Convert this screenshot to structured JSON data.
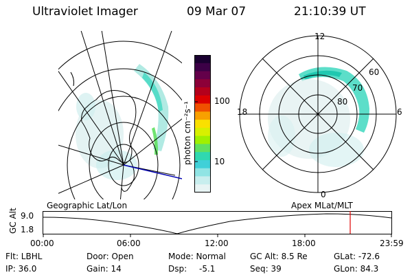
{
  "header": {
    "instrument": "Ultraviolet Imager",
    "date": "09 Mar 07",
    "time": "21:10:39 UT"
  },
  "colorbar": {
    "unit_label": "photon cm⁻²s⁻¹",
    "ticks": [
      "100",
      "10"
    ],
    "colors": [
      "#1a0030",
      "#3c0046",
      "#64004a",
      "#8c0038",
      "#b4001c",
      "#dc0000",
      "#f05000",
      "#f8a000",
      "#fae000",
      "#d8f000",
      "#a0f000",
      "#60e060",
      "#30d8b0",
      "#40d0d8",
      "#90e4e4",
      "#c8eeee",
      "#e8f4f4"
    ]
  },
  "left_map": {
    "name": "Geographic Lat/Lon"
  },
  "right_map": {
    "name": "Apex MLat/MLT",
    "mlt_labels": [
      "12",
      "18",
      "6",
      "0"
    ],
    "mlat_labels": [
      "60",
      "70",
      "80"
    ]
  },
  "altitude_plot": {
    "y_title": "GC Alt",
    "y_ticks": [
      "9.0",
      "1.8"
    ],
    "x_ticks": [
      "00:00",
      "06:00",
      "12:00",
      "18:00",
      "23:59"
    ],
    "marker_color": "#e00000"
  },
  "status": {
    "row1": {
      "flt": "Flt: LBHL",
      "door": "Door: Open",
      "mode": "Mode: Normal",
      "gcalt": "GC Alt: 8.5 Re",
      "glat": "GLat: -72.6"
    },
    "row2": {
      "ip": "IP: 36.0",
      "gain": "Gain: 14",
      "dsp_label": "Dsp:",
      "dsp_value": "-5.1",
      "seq": "Seq: 39",
      "glon": "GLon: 84.3"
    }
  }
}
